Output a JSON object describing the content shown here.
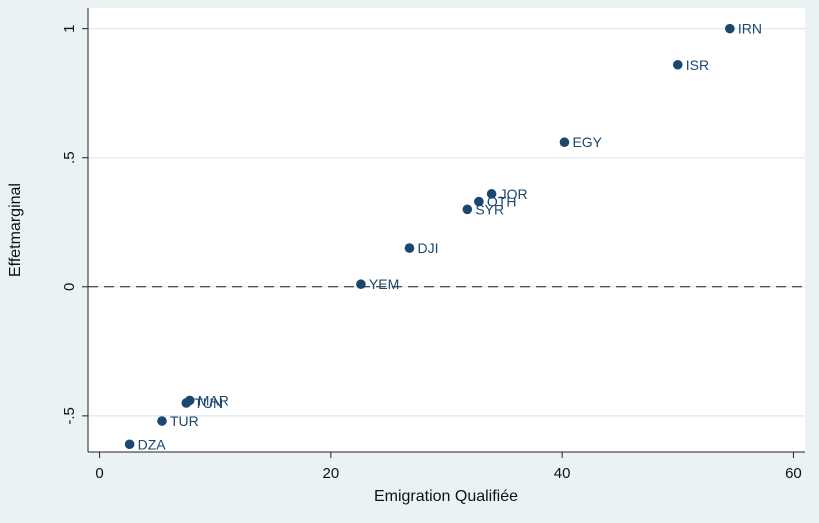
{
  "chart_data": {
    "type": "scatter",
    "xlabel": "Emigration Qualifiée",
    "ylabel": "Effetmarginal",
    "xlim": [
      -1,
      61
    ],
    "ylim": [
      -0.64,
      1.08
    ],
    "x_ticks": [
      0,
      20,
      40,
      60
    ],
    "x_tick_labels": [
      "0",
      "20",
      "40",
      "60"
    ],
    "y_ticks": [
      -0.5,
      0,
      0.5,
      1
    ],
    "y_tick_labels": [
      "-.5",
      "0",
      ".5",
      "1"
    ],
    "grid": "horizontal",
    "reference_line": {
      "y": 0,
      "style": "dashed"
    },
    "marker_color": "#1a476f",
    "label_color": "#1a476f",
    "points": [
      {
        "label": "IRN",
        "x": 54.5,
        "y": 1.0
      },
      {
        "label": "ISR",
        "x": 50.0,
        "y": 0.86
      },
      {
        "label": "EGY",
        "x": 40.2,
        "y": 0.56
      },
      {
        "label": "JOR",
        "x": 33.9,
        "y": 0.36
      },
      {
        "label": "OTH",
        "x": 32.8,
        "y": 0.33
      },
      {
        "label": "SYR",
        "x": 31.8,
        "y": 0.3
      },
      {
        "label": "DJI",
        "x": 26.8,
        "y": 0.15
      },
      {
        "label": "YEM",
        "x": 22.6,
        "y": 0.01
      },
      {
        "label": "MAR",
        "x": 7.8,
        "y": -0.44
      },
      {
        "label": "TUN",
        "x": 7.5,
        "y": -0.45
      },
      {
        "label": "TUR",
        "x": 5.4,
        "y": -0.52
      },
      {
        "label": "DZA",
        "x": 2.6,
        "y": -0.61
      }
    ]
  }
}
